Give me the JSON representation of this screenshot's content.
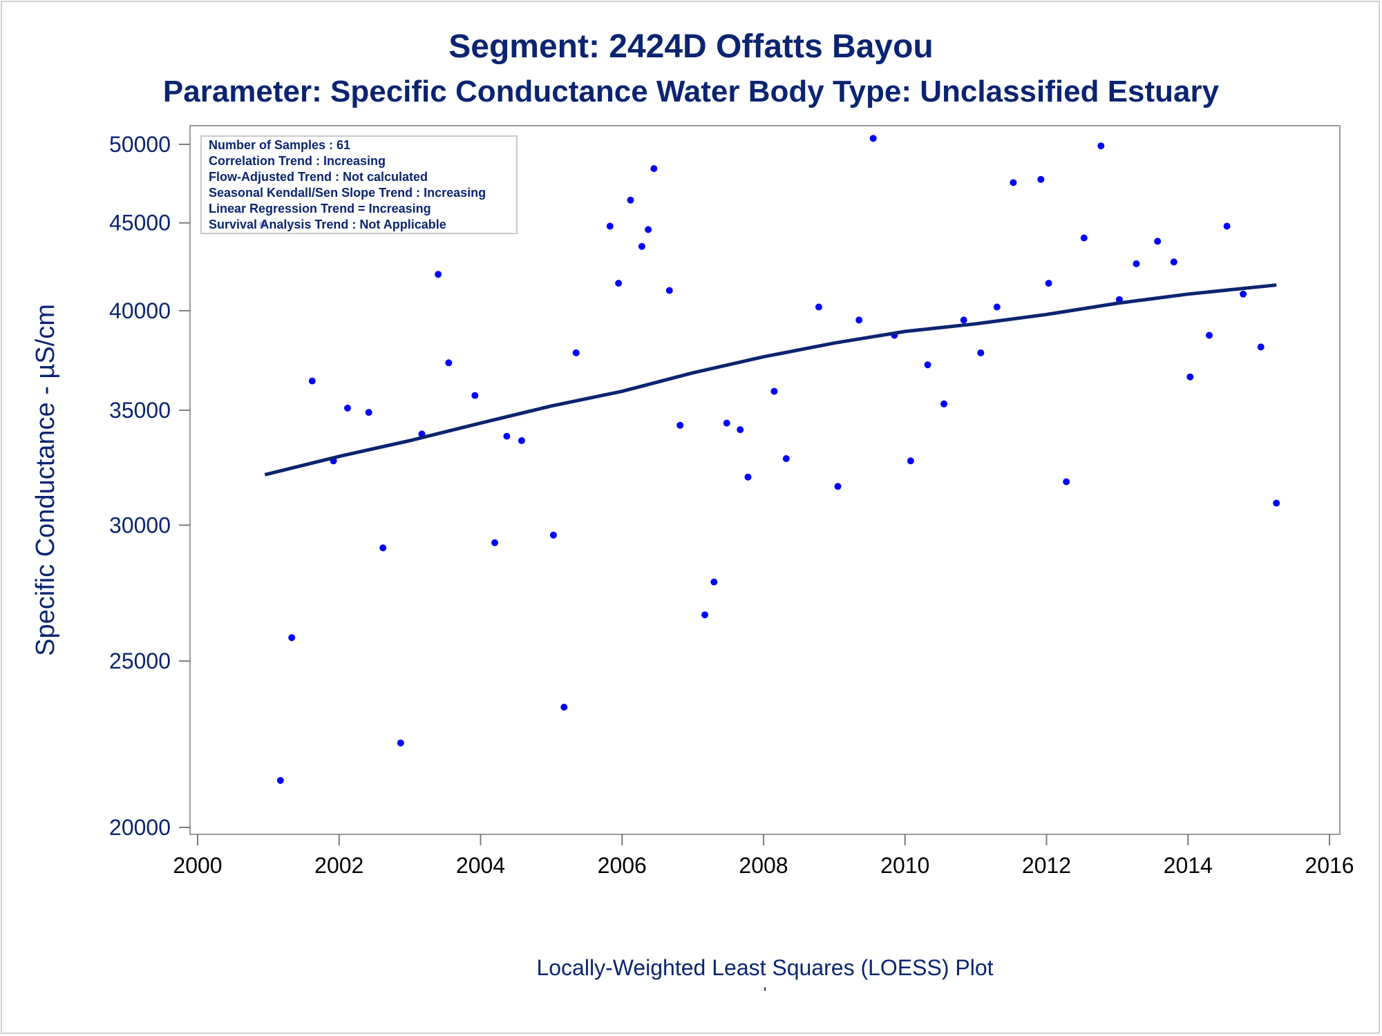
{
  "chart_data": {
    "type": "scatter",
    "title": "Segment: 2424D  Offatts Bayou",
    "subtitle": "Parameter: Specific Conductance   Water Body Type: Unclassified Estuary",
    "xlabel": "Locally-Weighted Least Squares (LOESS) Plot",
    "ylabel": "Specific Conductance -  µS/cm",
    "footnote": "'",
    "xlim": [
      2000,
      2016
    ],
    "ylim": [
      20000,
      50000
    ],
    "y_scale": "log",
    "x_ticks": [
      2000,
      2002,
      2004,
      2006,
      2008,
      2010,
      2012,
      2014,
      2016
    ],
    "y_ticks": [
      20000,
      25000,
      30000,
      35000,
      40000,
      45000,
      50000
    ],
    "grid": false,
    "legend": "none",
    "stats_box": {
      "position": "top-left",
      "lines": [
        "Number of Samples : 61",
        "Correlation Trend : Increasing",
        "Flow-Adjusted Trend : Not calculated",
        "Seasonal Kendall/Sen Slope Trend : Increasing",
        "Linear Regression Trend = Increasing",
        "Survival Analysis Trend : Not Applicable"
      ]
    },
    "series": [
      {
        "kind": "scatter",
        "color": "#0000ff",
        "points": [
          [
            2000.92,
            44900
          ],
          [
            2001.17,
            21300
          ],
          [
            2001.33,
            25800
          ],
          [
            2001.62,
            36400
          ],
          [
            2001.92,
            32700
          ],
          [
            2002.12,
            35100
          ],
          [
            2002.42,
            34900
          ],
          [
            2002.62,
            29100
          ],
          [
            2002.87,
            22400
          ],
          [
            2003.17,
            33900
          ],
          [
            2003.4,
            42000
          ],
          [
            2003.55,
            37300
          ],
          [
            2003.92,
            35700
          ],
          [
            2004.2,
            29300
          ],
          [
            2004.37,
            33800
          ],
          [
            2004.58,
            33600
          ],
          [
            2005.03,
            29600
          ],
          [
            2005.18,
            23500
          ],
          [
            2005.35,
            37800
          ],
          [
            2005.83,
            44800
          ],
          [
            2005.95,
            41500
          ],
          [
            2006.12,
            46400
          ],
          [
            2006.28,
            43600
          ],
          [
            2006.37,
            44600
          ],
          [
            2006.45,
            48400
          ],
          [
            2006.67,
            41100
          ],
          [
            2006.82,
            34300
          ],
          [
            2007.17,
            26600
          ],
          [
            2007.3,
            27800
          ],
          [
            2007.48,
            34400
          ],
          [
            2007.67,
            34100
          ],
          [
            2007.78,
            32000
          ],
          [
            2008.15,
            35900
          ],
          [
            2008.32,
            32800
          ],
          [
            2008.78,
            40200
          ],
          [
            2009.05,
            31600
          ],
          [
            2009.35,
            39500
          ],
          [
            2009.55,
            50400
          ],
          [
            2009.85,
            38700
          ],
          [
            2010.08,
            32700
          ],
          [
            2010.32,
            37200
          ],
          [
            2010.55,
            35300
          ],
          [
            2010.83,
            39500
          ],
          [
            2011.07,
            37800
          ],
          [
            2011.3,
            40200
          ],
          [
            2011.53,
            47500
          ],
          [
            2011.92,
            47700
          ],
          [
            2012.03,
            41500
          ],
          [
            2012.28,
            31800
          ],
          [
            2012.53,
            44100
          ],
          [
            2012.77,
            49900
          ],
          [
            2013.03,
            40600
          ],
          [
            2013.27,
            42600
          ],
          [
            2013.57,
            43900
          ],
          [
            2013.8,
            42700
          ],
          [
            2014.03,
            36600
          ],
          [
            2014.3,
            38700
          ],
          [
            2014.55,
            44800
          ],
          [
            2014.78,
            40900
          ],
          [
            2015.03,
            38100
          ],
          [
            2015.25,
            30900
          ]
        ]
      },
      {
        "kind": "line",
        "color": "#0b2470",
        "points": [
          [
            2000.95,
            32100
          ],
          [
            2002.0,
            32900
          ],
          [
            2003.0,
            33600
          ],
          [
            2004.0,
            34400
          ],
          [
            2005.0,
            35200
          ],
          [
            2006.0,
            35900
          ],
          [
            2007.0,
            36800
          ],
          [
            2008.0,
            37600
          ],
          [
            2009.0,
            38300
          ],
          [
            2010.0,
            38900
          ],
          [
            2011.0,
            39300
          ],
          [
            2012.0,
            39800
          ],
          [
            2013.0,
            40400
          ],
          [
            2014.0,
            40900
          ],
          [
            2015.25,
            41400
          ]
        ]
      }
    ]
  }
}
